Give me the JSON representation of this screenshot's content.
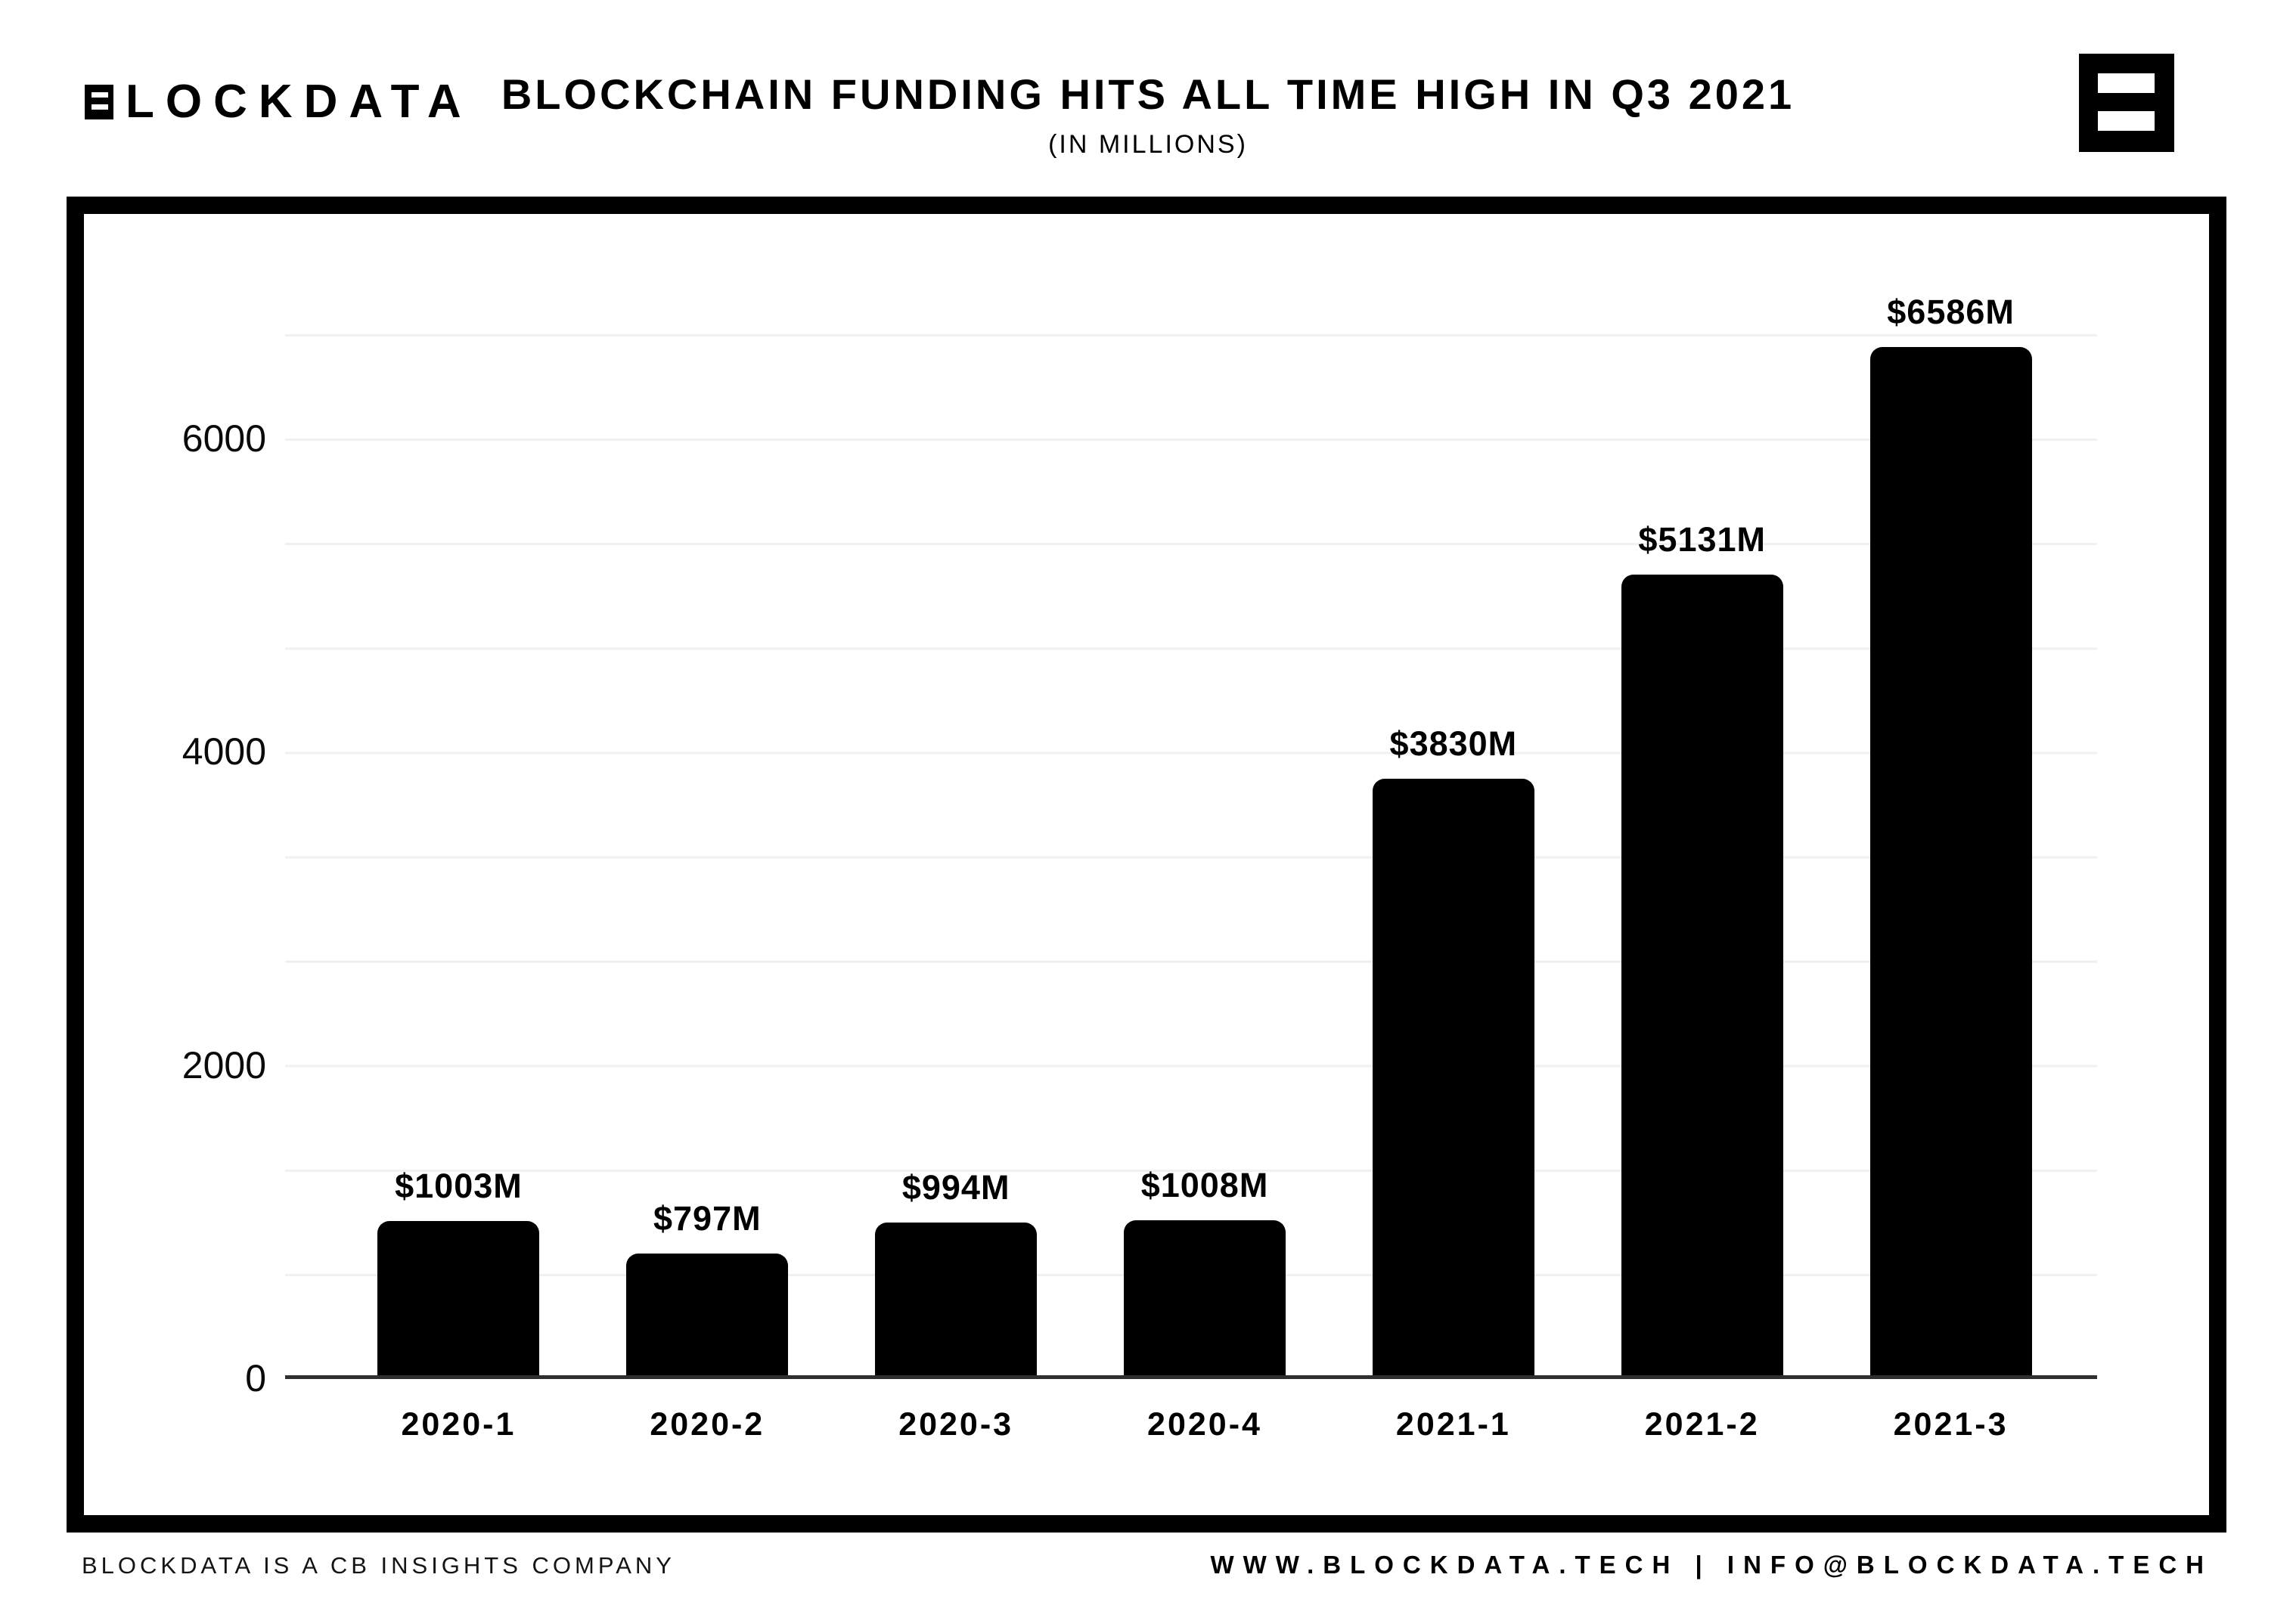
{
  "header": {
    "logo_text": "LOCKDATA",
    "title": "BLOCKCHAIN FUNDING HITS ALL TIME HIGH IN Q3 2021",
    "subtitle": "(IN MILLIONS)"
  },
  "footer": {
    "left": "BLOCKDATA IS A CB INSIGHTS COMPANY",
    "right": "WWW.BLOCKDATA.TECH | INFO@BLOCKDATA.TECH"
  },
  "chart_data": {
    "type": "bar",
    "title": "BLOCKCHAIN FUNDING HITS ALL TIME HIGH IN Q3 2021",
    "subtitle": "(IN MILLIONS)",
    "categories": [
      "2020-1",
      "2020-2",
      "2020-3",
      "2020-4",
      "2021-1",
      "2021-2",
      "2021-3"
    ],
    "values": [
      1003,
      797,
      994,
      1008,
      3830,
      5131,
      6586
    ],
    "value_labels": [
      "$1003M",
      "$797M",
      "$994M",
      "$1008M",
      "$3830M",
      "$5131M",
      "$6586M"
    ],
    "yticks": [
      0,
      2000,
      4000,
      6000
    ],
    "ylim": [
      0,
      6667
    ],
    "xlabel": "",
    "ylabel": "",
    "grid": true,
    "gridline_step": 666.7,
    "legend": "none",
    "bar_color": "#000000",
    "gridline_color": "#f0f0f0",
    "axis_color": "#2f2f2f"
  }
}
